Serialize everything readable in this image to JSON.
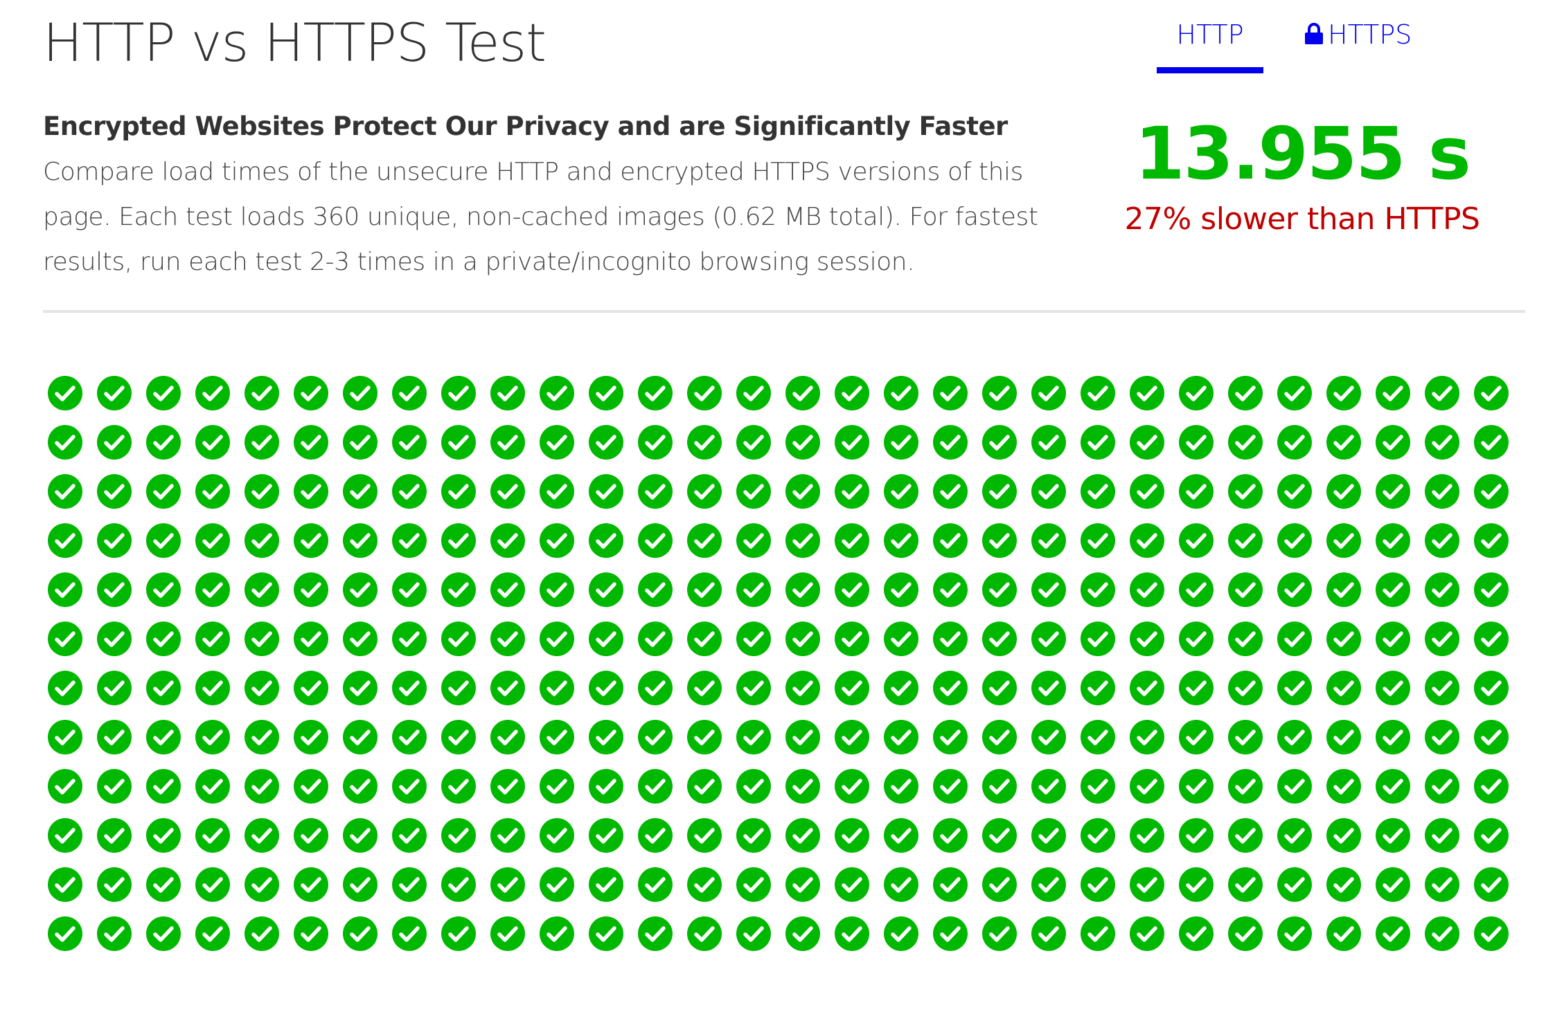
{
  "header": {
    "title": "HTTP vs HTTPS Test"
  },
  "tabs": {
    "http_label": "HTTP",
    "https_label": "HTTPS",
    "active": "HTTP",
    "https_icon": "lock-icon"
  },
  "intro": {
    "heading": "Encrypted Websites Protect Our Privacy and are Significantly Faster",
    "text": "Compare load times of the unsecure HTTP and encrypted HTTPS versions of this page. Each test loads 360 unique, non-cached images (0.62 MB total). For fastest results, run each test 2-3 times in a private/incognito browsing session."
  },
  "result": {
    "time": "13.955 s",
    "comparison": "27% slower than HTTPS"
  },
  "image_grid": {
    "rows": 12,
    "columns": 30,
    "loaded_count": 360,
    "icon": "check-circle-icon"
  },
  "colors": {
    "accent": "#0000ee",
    "success": "#00b800",
    "warning": "#c00000",
    "text": "#333333",
    "divider": "#e4e4e4"
  }
}
